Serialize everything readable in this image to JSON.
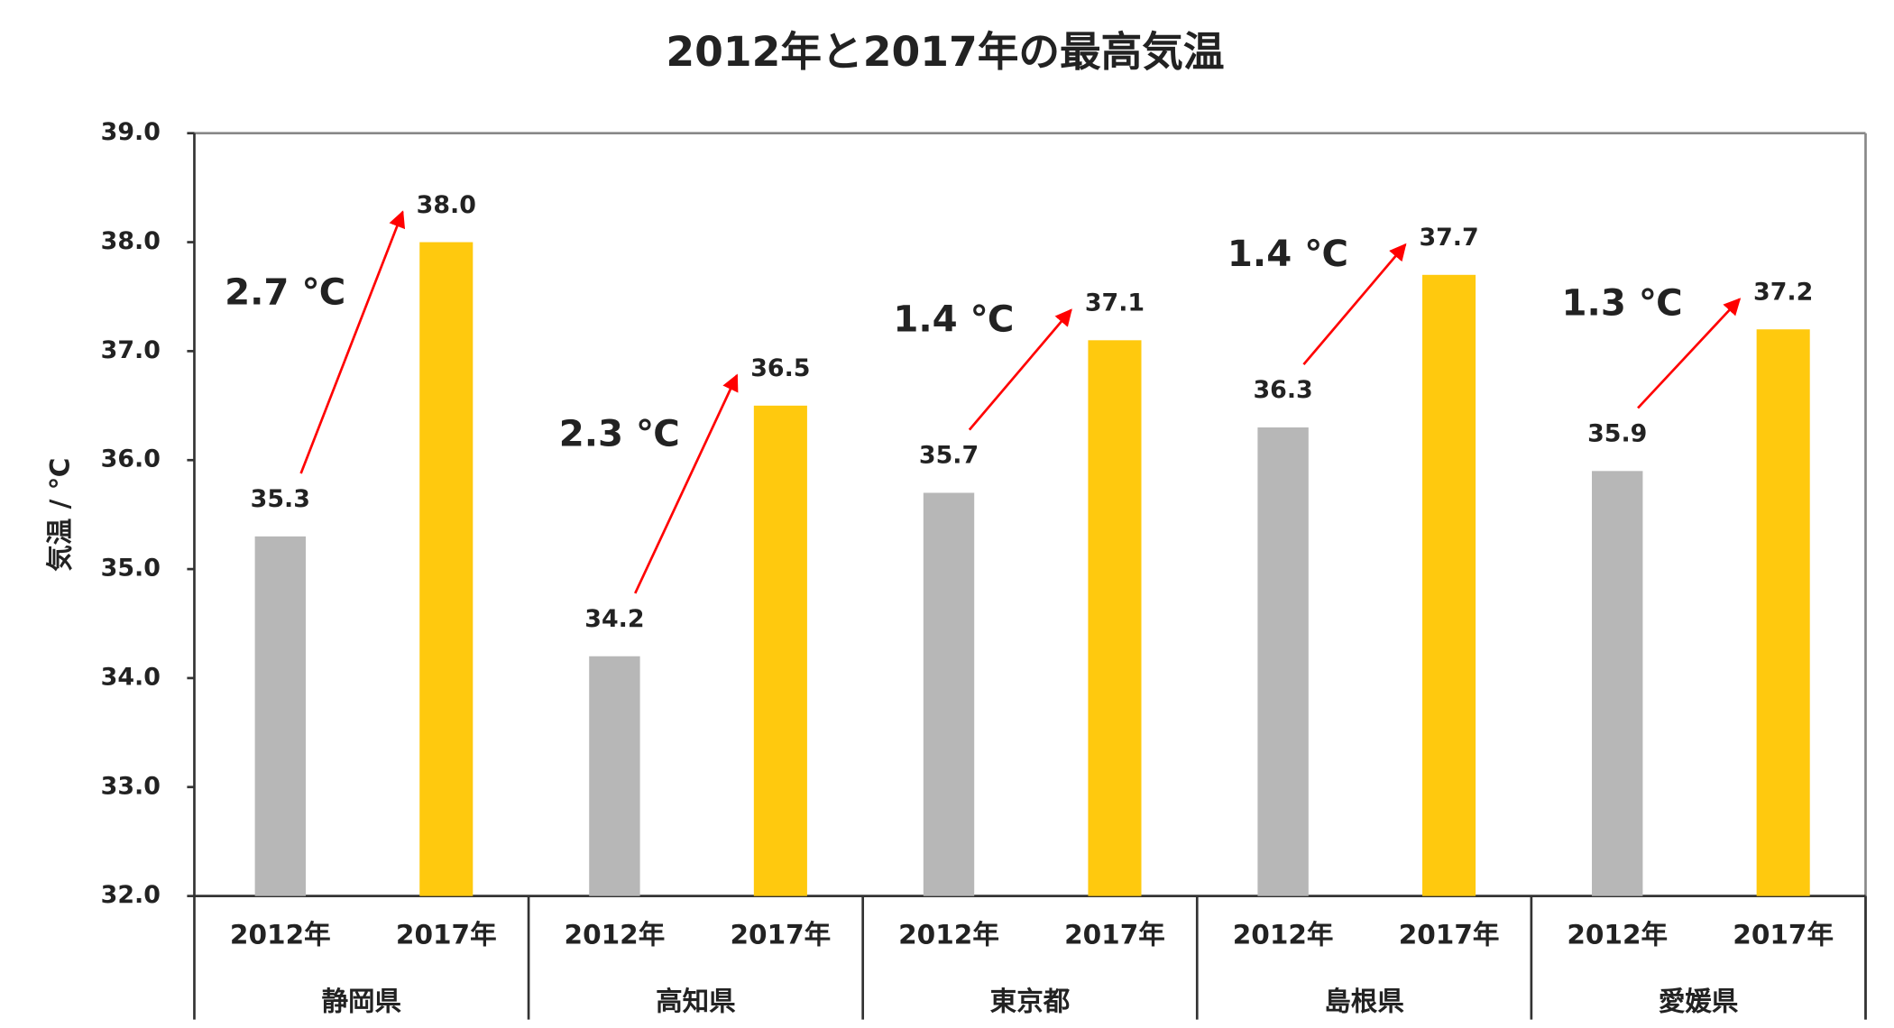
{
  "chart_data": {
    "type": "bar",
    "title": "2012年と2017年の最高気温",
    "y_label": "気温 / ℃",
    "categories": [
      "静岡県",
      "高知県",
      "東京都",
      "島根県",
      "愛媛県"
    ],
    "series": [
      {
        "name": "2012年",
        "color": "#b7b7b7",
        "values": [
          35.3,
          34.2,
          35.7,
          36.3,
          35.9
        ],
        "value_labels": [
          "35.3",
          "34.2",
          "35.7",
          "36.3",
          "35.9"
        ]
      },
      {
        "name": "2017年",
        "color": "#ffc90e",
        "values": [
          38.0,
          36.5,
          37.1,
          37.7,
          37.2
        ],
        "value_labels": [
          "38.0",
          "36.5",
          "37.1",
          "37.7",
          "37.2"
        ]
      }
    ],
    "annotations": [
      "2.7 ℃",
      "2.3 ℃",
      "1.4 ℃",
      "1.4 ℃",
      "1.3 ℃"
    ],
    "annotation_color": "#ff0000",
    "ylim": [
      32,
      39
    ],
    "yticks": [
      {
        "value": 32,
        "label": "32.0"
      },
      {
        "value": 33,
        "label": "33.0"
      },
      {
        "value": 34,
        "label": "34.0"
      },
      {
        "value": 35,
        "label": "35.0"
      },
      {
        "value": 36,
        "label": "36.0"
      },
      {
        "value": 37,
        "label": "37.0"
      },
      {
        "value": 38,
        "label": "38.0"
      },
      {
        "value": 39,
        "label": "39.0"
      }
    ]
  }
}
